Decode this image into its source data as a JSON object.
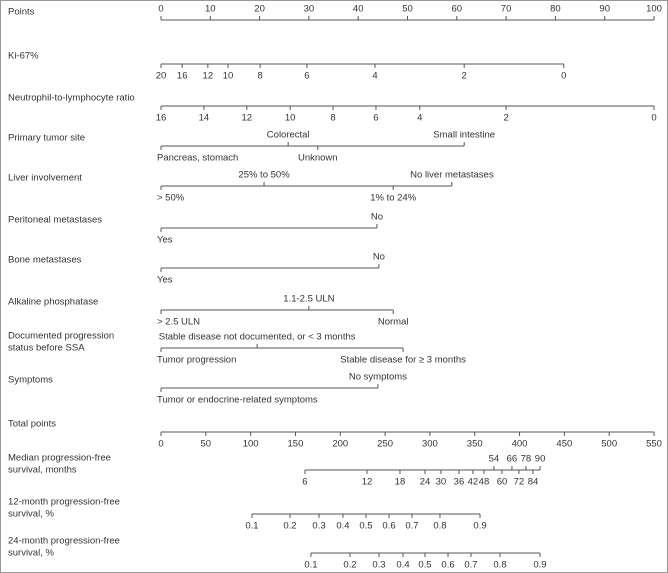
{
  "chart_data": {
    "type": "nomogram",
    "color": "#555555",
    "rows": [
      {
        "name": [
          "Points"
        ],
        "scale": "points",
        "side": "above",
        "ticks": [
          0,
          10,
          20,
          30,
          40,
          50,
          60,
          70,
          80,
          90,
          100
        ]
      },
      {
        "name": [
          "Ki-67%"
        ],
        "scale": "points",
        "side": "below",
        "ticks": [
          {
            "value": 0,
            "label": "20"
          },
          {
            "value": 4.3,
            "label": "16"
          },
          {
            "value": 9.5,
            "label": "12"
          },
          {
            "value": 13.6,
            "label": "10"
          },
          {
            "value": 20.1,
            "label": "8"
          },
          {
            "value": 29.6,
            "label": "6"
          },
          {
            "value": 43.4,
            "label": "4"
          },
          {
            "value": 61.5,
            "label": "2"
          },
          {
            "value": 81.7,
            "label": "0"
          }
        ]
      },
      {
        "name": [
          "Neutrophil-to-lymphocyte ratio"
        ],
        "scale": "points",
        "side": "below",
        "ticks": [
          {
            "value": 0,
            "label": "16"
          },
          {
            "value": 8.7,
            "label": "14"
          },
          {
            "value": 17.4,
            "label": "12"
          },
          {
            "value": 26.2,
            "label": "10"
          },
          {
            "value": 34.9,
            "label": "8"
          },
          {
            "value": 43.6,
            "label": "6"
          },
          {
            "value": 52.5,
            "label": "4"
          },
          {
            "value": 70,
            "label": "2"
          },
          {
            "value": 100,
            "label": "0"
          }
        ]
      },
      {
        "name": [
          "Primary tumor site"
        ],
        "scale": "points",
        "ticks": [
          {
            "value": 0,
            "label": "Pancreas, stomach",
            "side": "below"
          },
          {
            "value": 25.8,
            "label": "Colorectal",
            "side": "above"
          },
          {
            "value": 31.8,
            "label": "Unknown",
            "side": "below"
          },
          {
            "value": 61.5,
            "label": "Small intestine",
            "side": "above"
          }
        ]
      },
      {
        "name": [
          "Liver involvement"
        ],
        "scale": "points",
        "ticks": [
          {
            "value": 0,
            "label": "> 50%",
            "side": "below"
          },
          {
            "value": 20.9,
            "label": "25% to 50%",
            "side": "above"
          },
          {
            "value": 47.1,
            "label": "1% to 24%",
            "side": "below"
          },
          {
            "value": 59,
            "label": "No liver metastases",
            "side": "above"
          }
        ]
      },
      {
        "name": [
          "Peritoneal metastases"
        ],
        "scale": "points",
        "ticks": [
          {
            "value": 0,
            "label": "Yes",
            "side": "below"
          },
          {
            "value": 43.8,
            "label": "No",
            "side": "above"
          }
        ]
      },
      {
        "name": [
          "Bone metastases"
        ],
        "scale": "points",
        "ticks": [
          {
            "value": 0,
            "label": "Yes",
            "side": "below"
          },
          {
            "value": 44.2,
            "label": "No",
            "side": "above"
          }
        ]
      },
      {
        "name": [
          "Alkaline phosphatase"
        ],
        "scale": "points",
        "ticks": [
          {
            "value": 0,
            "label": "> 2.5 ULN",
            "side": "below"
          },
          {
            "value": 30,
            "label": "1.1-2.5 ULN",
            "side": "above"
          },
          {
            "value": 47.1,
            "label": "Normal",
            "side": "below"
          }
        ]
      },
      {
        "name": [
          "Documented progression",
          "status before SSA"
        ],
        "scale": "points",
        "ticks": [
          {
            "value": 0,
            "label": "Tumor progression",
            "side": "below"
          },
          {
            "value": 19.5,
            "label": "Stable disease not documented, or < 3 months",
            "side": "above"
          },
          {
            "value": 49.1,
            "label": "Stable disease for ≥ 3 months",
            "side": "below"
          }
        ]
      },
      {
        "name": [
          "Symptoms"
        ],
        "scale": "points",
        "ticks": [
          {
            "value": 0,
            "label": "Tumor or endocrine-related symptoms",
            "side": "below"
          },
          {
            "value": 44,
            "label": "No symptoms",
            "side": "above"
          }
        ]
      },
      {
        "name": [
          "Total points"
        ],
        "scale": "total",
        "side": "below",
        "ticks": [
          0,
          50,
          100,
          150,
          200,
          250,
          300,
          350,
          400,
          450,
          500,
          550
        ]
      },
      {
        "name": [
          "Median progression-free",
          "survival, months"
        ],
        "scale": "total",
        "ticks": [
          {
            "value": 160.6,
            "label": "6",
            "side": "below"
          },
          {
            "value": 229.8,
            "label": "12",
            "side": "below"
          },
          {
            "value": 266.6,
            "label": "18",
            "side": "below"
          },
          {
            "value": 294.5,
            "label": "24",
            "side": "below"
          },
          {
            "value": 312.3,
            "label": "30",
            "side": "below"
          },
          {
            "value": 332.4,
            "label": "36",
            "side": "below"
          },
          {
            "value": 348,
            "label": "42",
            "side": "below"
          },
          {
            "value": 360.3,
            "label": "48",
            "side": "below"
          },
          {
            "value": 371.4,
            "label": "54",
            "side": "above"
          },
          {
            "value": 380.4,
            "label": "60",
            "side": "below"
          },
          {
            "value": 391.5,
            "label": "66",
            "side": "above"
          },
          {
            "value": 399.3,
            "label": "72",
            "side": "below"
          },
          {
            "value": 407.1,
            "label": "78",
            "side": "above"
          },
          {
            "value": 415,
            "label": "84",
            "side": "below"
          },
          {
            "value": 422.9,
            "label": "90",
            "side": "above"
          }
        ]
      },
      {
        "name": [
          "12-month progression-free",
          "survival, %"
        ],
        "scale": "total",
        "side": "below",
        "ticks": [
          {
            "value": 101.5,
            "label": "0.1"
          },
          {
            "value": 143.9,
            "label": "0.2"
          },
          {
            "value": 176.3,
            "label": "0.3"
          },
          {
            "value": 203,
            "label": "0.4"
          },
          {
            "value": 228.7,
            "label": "0.5"
          },
          {
            "value": 254.4,
            "label": "0.6"
          },
          {
            "value": 280,
            "label": "0.7"
          },
          {
            "value": 311.2,
            "label": "0.8"
          },
          {
            "value": 355.9,
            "label": "0.9"
          }
        ]
      },
      {
        "name": [
          "24-month progression-free",
          "survival, %"
        ],
        "scale": "total",
        "side": "below",
        "ticks": [
          {
            "value": 167.3,
            "label": "0.1"
          },
          {
            "value": 210.8,
            "label": "0.2"
          },
          {
            "value": 243.2,
            "label": "0.3"
          },
          {
            "value": 270,
            "label": "0.4"
          },
          {
            "value": 294.5,
            "label": "0.5"
          },
          {
            "value": 320.2,
            "label": "0.6"
          },
          {
            "value": 345.8,
            "label": "0.7"
          },
          {
            "value": 378.2,
            "label": "0.8"
          },
          {
            "value": 422.8,
            "label": "0.9"
          }
        ]
      }
    ],
    "xlim": [
      0,
      100
    ],
    "x2lim": [
      0,
      550
    ]
  }
}
